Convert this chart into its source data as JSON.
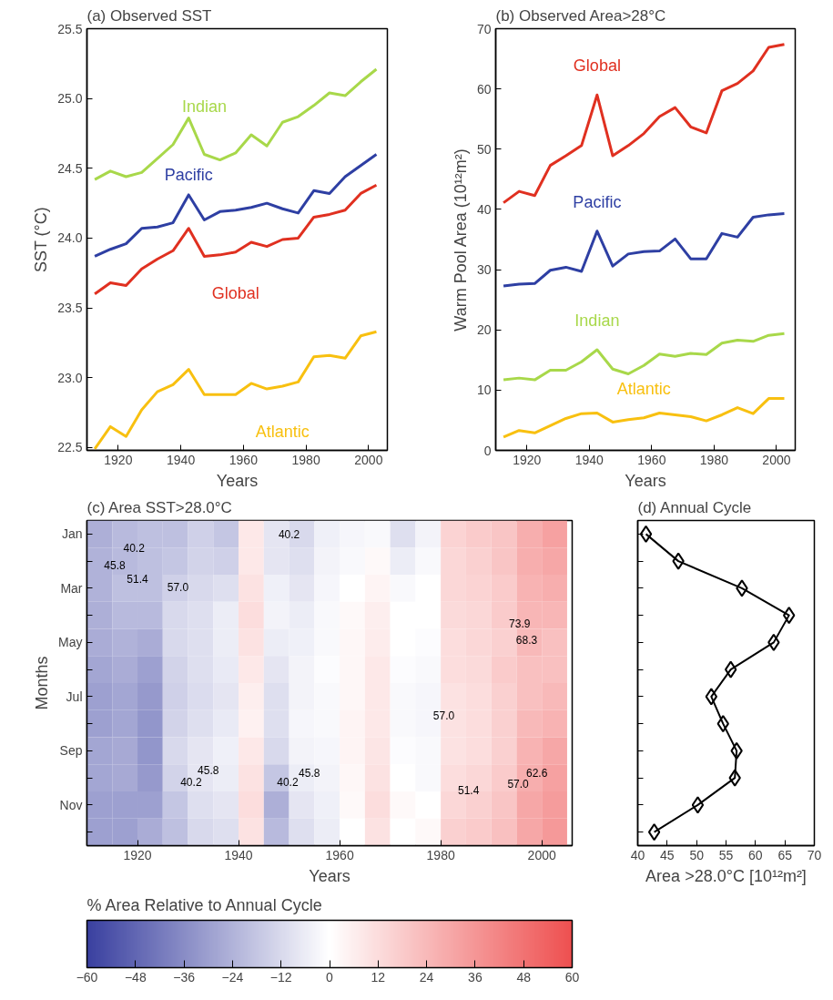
{
  "chart_data": [
    {
      "type": "line",
      "title": "(a) Observed SST",
      "xlabel": "Years",
      "ylabel": "SST (°C)",
      "x": [
        1912.5,
        1917.5,
        1922.5,
        1927.5,
        1932.5,
        1937.5,
        1942.5,
        1947.5,
        1952.5,
        1957.5,
        1962.5,
        1967.5,
        1972.5,
        1977.5,
        1982.5,
        1987.5,
        1992.5,
        1997.5,
        2002.5
      ],
      "xlim": [
        1910,
        2006
      ],
      "xticks": [
        1920,
        1940,
        1960,
        1980,
        2000
      ],
      "ylim": [
        22.48,
        25.5
      ],
      "yticks": [
        22.5,
        {
          "value": 23,
          "label": "23.0"
        },
        23.5,
        {
          "value": 24,
          "label": "24.0"
        },
        24.5,
        {
          "value": 25,
          "label": "25.0"
        },
        25.5
      ],
      "series": [
        {
          "name": "Indian",
          "color": "#a8d84a",
          "values": [
            24.42,
            24.48,
            24.44,
            24.47,
            24.57,
            24.67,
            24.86,
            24.6,
            24.56,
            24.61,
            24.74,
            24.66,
            24.83,
            24.87,
            24.95,
            25.04,
            25.02,
            25.12,
            25.21
          ]
        },
        {
          "name": "Pacific",
          "color": "#2e3fa3",
          "values": [
            23.87,
            23.92,
            23.96,
            24.07,
            24.08,
            24.11,
            24.31,
            24.13,
            24.19,
            24.2,
            24.22,
            24.25,
            24.21,
            24.18,
            24.34,
            24.32,
            24.44,
            24.52,
            24.6
          ]
        },
        {
          "name": "Global",
          "color": "#e03020",
          "values": [
            23.6,
            23.68,
            23.66,
            23.78,
            23.85,
            23.91,
            24.07,
            23.87,
            23.88,
            23.9,
            23.97,
            23.94,
            23.99,
            24.0,
            24.15,
            24.17,
            24.2,
            24.32,
            24.38
          ]
        },
        {
          "name": "Atlantic",
          "color": "#f8c010",
          "values": [
            22.49,
            22.65,
            22.58,
            22.77,
            22.9,
            22.95,
            23.06,
            22.88,
            22.88,
            22.88,
            22.96,
            22.92,
            22.94,
            22.97,
            23.15,
            23.16,
            23.14,
            23.3,
            23.33
          ]
        }
      ]
    },
    {
      "type": "line",
      "title": "(b) Observed Area>28°C",
      "xlabel": "Years",
      "ylabel": "Warm Pool Area (10¹²m²)",
      "x": [
        1912.5,
        1917.5,
        1922.5,
        1927.5,
        1932.5,
        1937.5,
        1942.5,
        1947.5,
        1952.5,
        1957.5,
        1962.5,
        1967.5,
        1972.5,
        1977.5,
        1982.5,
        1987.5,
        1992.5,
        1997.5,
        2002.5
      ],
      "xlim": [
        1910,
        2006
      ],
      "xticks": [
        1920,
        1940,
        1960,
        1980,
        2000
      ],
      "ylim": [
        0,
        70
      ],
      "yticks": [
        0,
        10,
        20,
        30,
        40,
        50,
        60,
        70
      ],
      "series": [
        {
          "name": "Global",
          "color": "#e03020",
          "values": [
            41.1,
            43.0,
            42.3,
            47.3,
            48.9,
            50.6,
            59.0,
            48.9,
            50.6,
            52.6,
            55.4,
            56.9,
            53.7,
            52.7,
            59.7,
            60.9,
            63.0,
            66.9,
            67.4
          ]
        },
        {
          "name": "Pacific",
          "color": "#2e3fa3",
          "values": [
            27.3,
            27.6,
            27.7,
            29.9,
            30.4,
            29.7,
            36.4,
            30.6,
            32.6,
            33.0,
            33.1,
            35.1,
            31.8,
            31.8,
            36.0,
            35.4,
            38.7,
            39.1,
            39.3
          ]
        },
        {
          "name": "Indian",
          "color": "#a8d84a",
          "values": [
            11.7,
            12.0,
            11.7,
            13.3,
            13.3,
            14.7,
            16.7,
            13.5,
            12.7,
            14.1,
            16.0,
            15.6,
            16.1,
            15.9,
            17.8,
            18.3,
            18.1,
            19.1,
            19.4
          ]
        },
        {
          "name": "Atlantic",
          "color": "#f8c010",
          "values": [
            2.2,
            3.3,
            2.9,
            4.1,
            5.3,
            6.1,
            6.2,
            4.7,
            5.1,
            5.4,
            6.2,
            5.9,
            5.6,
            4.9,
            5.9,
            7.1,
            6.1,
            8.6,
            8.6
          ]
        }
      ]
    },
    {
      "type": "heatmap",
      "title": "(c) Area SST>28.0°C",
      "xlabel": "Years",
      "ylabel": "Months",
      "clabel": "% Area Relative to Annual Cycle",
      "x": [
        1912.5,
        1917.5,
        1922.5,
        1927.5,
        1932.5,
        1937.5,
        1942.5,
        1947.5,
        1952.5,
        1957.5,
        1962.5,
        1967.5,
        1972.5,
        1977.5,
        1982.5,
        1987.5,
        1992.5,
        1997.5,
        2002.5
      ],
      "xlim": [
        1910,
        2006
      ],
      "xticks": [
        1920,
        1940,
        1960,
        1980,
        2000
      ],
      "y_categories": [
        "Jan",
        null,
        "Mar",
        null,
        "May",
        null,
        "Jul",
        null,
        "Sep",
        null,
        "Nov",
        null
      ],
      "clim": [
        -60,
        60
      ],
      "cticks": [
        -60,
        -48,
        -36,
        -24,
        -12,
        0,
        12,
        24,
        36,
        48,
        60
      ],
      "cells": [
        [
          -25,
          -22,
          -20,
          -20,
          -15,
          -18,
          8,
          -8,
          -12,
          -5,
          -3,
          -2,
          -10,
          -4,
          15,
          18,
          20,
          28,
          32
        ],
        [
          -24,
          -22,
          -20,
          -18,
          -14,
          -15,
          8,
          -8,
          -10,
          -4,
          -2,
          2,
          -6,
          -2,
          14,
          16,
          20,
          28,
          30
        ],
        [
          -24,
          -20,
          -20,
          -15,
          -12,
          -10,
          10,
          -5,
          -8,
          -3,
          0,
          4,
          -2,
          0,
          14,
          15,
          18,
          26,
          28
        ],
        [
          -25,
          -22,
          -22,
          -12,
          -10,
          -6,
          12,
          -4,
          -6,
          -2,
          2,
          6,
          0,
          0,
          13,
          14,
          18,
          25,
          25
        ],
        [
          -26,
          -24,
          -26,
          -12,
          -10,
          -6,
          10,
          -6,
          -5,
          -2,
          3,
          7,
          0,
          -1,
          12,
          14,
          16,
          24,
          22
        ],
        [
          -28,
          -26,
          -30,
          -14,
          -10,
          -7,
          8,
          -8,
          -4,
          -1,
          3,
          8,
          -1,
          -2,
          12,
          13,
          18,
          22,
          22
        ],
        [
          -30,
          -28,
          -32,
          -15,
          -11,
          -8,
          6,
          -10,
          -4,
          -2,
          3,
          8,
          -2,
          -3,
          10,
          12,
          16,
          22,
          24
        ],
        [
          -30,
          -28,
          -33,
          -14,
          -10,
          -7,
          5,
          -10,
          -3,
          -2,
          4,
          8,
          -2,
          -3,
          10,
          12,
          16,
          24,
          26
        ],
        [
          -28,
          -27,
          -33,
          -12,
          -8,
          -5,
          8,
          -12,
          -4,
          -3,
          4,
          9,
          -1,
          -2,
          10,
          12,
          16,
          26,
          30
        ],
        [
          -28,
          -27,
          -32,
          -14,
          -8,
          -6,
          10,
          -18,
          -6,
          -4,
          3,
          10,
          0,
          -2,
          12,
          14,
          18,
          28,
          32
        ],
        [
          -30,
          -30,
          -30,
          -18,
          -10,
          -8,
          12,
          -25,
          -8,
          -5,
          2,
          12,
          2,
          0,
          14,
          16,
          20,
          30,
          34
        ],
        [
          -30,
          -30,
          -26,
          -20,
          -12,
          -10,
          10,
          -22,
          -10,
          -6,
          0,
          10,
          0,
          2,
          16,
          18,
          22,
          30,
          35
        ]
      ],
      "annotations": [
        "40.2",
        "45.8",
        "51.4",
        "57.0",
        "40.2",
        "73.9",
        "68.3",
        "57.0",
        "45.8",
        "40.2",
        "45.8",
        "40.2",
        "62.6",
        "57.0",
        "51.4"
      ]
    },
    {
      "type": "line",
      "orientation": "horizontal",
      "title": "(d) Annual Cycle",
      "xlabel": "Area >28.0°C [10¹²m²]",
      "marker": "diamond",
      "tick_labels": "x",
      "categories": [
        null,
        null,
        null,
        null,
        null,
        null,
        null,
        null,
        null,
        null,
        null,
        null
      ],
      "xlim": [
        40,
        70
      ],
      "xticks": [
        40,
        45,
        50,
        55,
        60,
        65,
        70
      ],
      "series": [
        {
          "color": "#000000",
          "values": [
            41.4,
            46.9,
            57.7,
            65.7,
            63.1,
            55.8,
            52.5,
            54.5,
            56.8,
            56.5,
            50.2,
            42.8
          ]
        }
      ]
    }
  ]
}
